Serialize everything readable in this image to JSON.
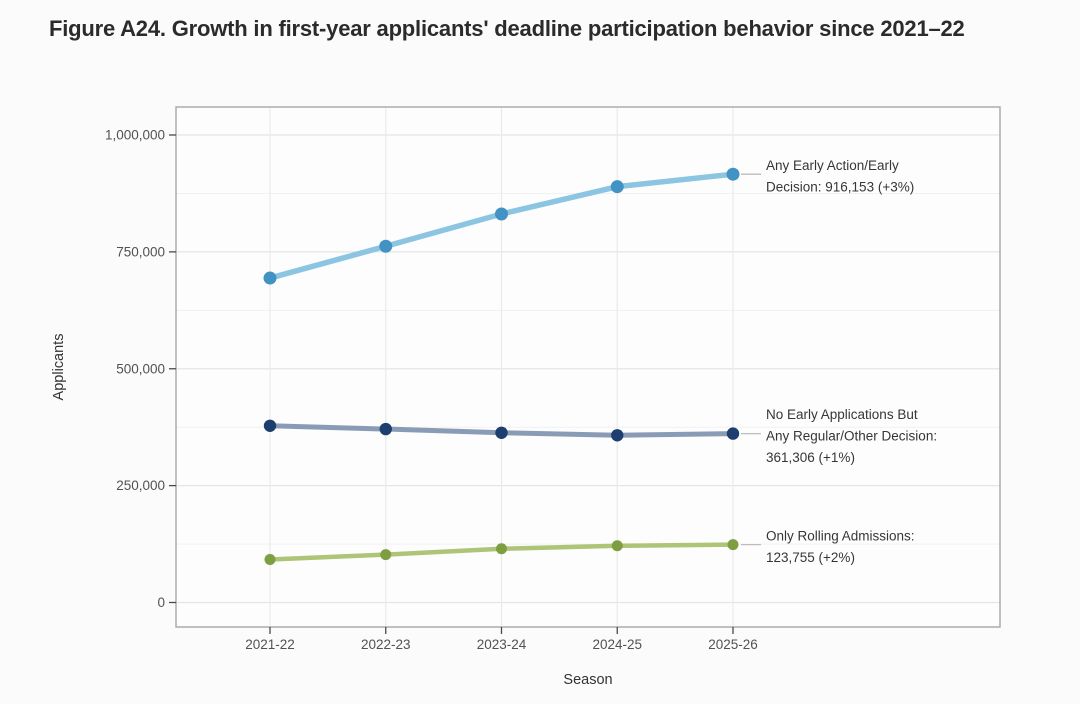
{
  "figure": {
    "title": "Figure A24. Growth in first-year applicants' deadline participation behavior since 2021–22"
  },
  "chart_data": {
    "type": "line",
    "title": "Figure A24. Growth in first-year applicants' deadline participation behavior since 2021–22",
    "xlabel": "Season",
    "ylabel": "Applicants",
    "categories": [
      "2021-22",
      "2022-23",
      "2023-24",
      "2024-25",
      "2025-26"
    ],
    "y_axis": {
      "range": [
        0,
        1000000
      ],
      "ticks": [
        0,
        250000,
        500000,
        750000,
        1000000
      ],
      "tick_labels": [
        "0",
        "250,000",
        "500,000",
        "750,000",
        "1,000,000"
      ],
      "minor_gridlines": [
        125000,
        375000,
        625000,
        875000
      ]
    },
    "grid": "on",
    "legend_position": "right-edge annotations",
    "series": [
      {
        "name": "Any Early Action/Early Decision",
        "values": [
          694000,
          762000,
          831000,
          889500,
          916153
        ],
        "line_color": "#8bc5e2",
        "point_color": "#4392c4",
        "annotation": {
          "lines": [
            "Any Early Action/Early",
            "Decision: 916,153 (+3%)"
          ],
          "final_value": "916,153",
          "change": "+3%"
        }
      },
      {
        "name": "No Early Applications But Any Regular/Other Decision",
        "values": [
          378000,
          371000,
          363000,
          357700,
          361306
        ],
        "line_color": "#8a9cb5",
        "point_color": "#1d3e6e",
        "annotation": {
          "lines": [
            "No Early Applications But",
            "Any Regular/Other Decision:",
            "361,306 (+1%)"
          ],
          "final_value": "361,306",
          "change": "+1%"
        }
      },
      {
        "name": "Only Rolling Admissions",
        "values": [
          92000,
          102500,
          115000,
          121300,
          123755
        ],
        "line_color": "#aec477",
        "point_color": "#7e9e42",
        "annotation": {
          "lines": [
            "Only Rolling Admissions:",
            "123,755 (+2%)"
          ],
          "final_value": "123,755",
          "change": "+2%"
        }
      }
    ]
  }
}
